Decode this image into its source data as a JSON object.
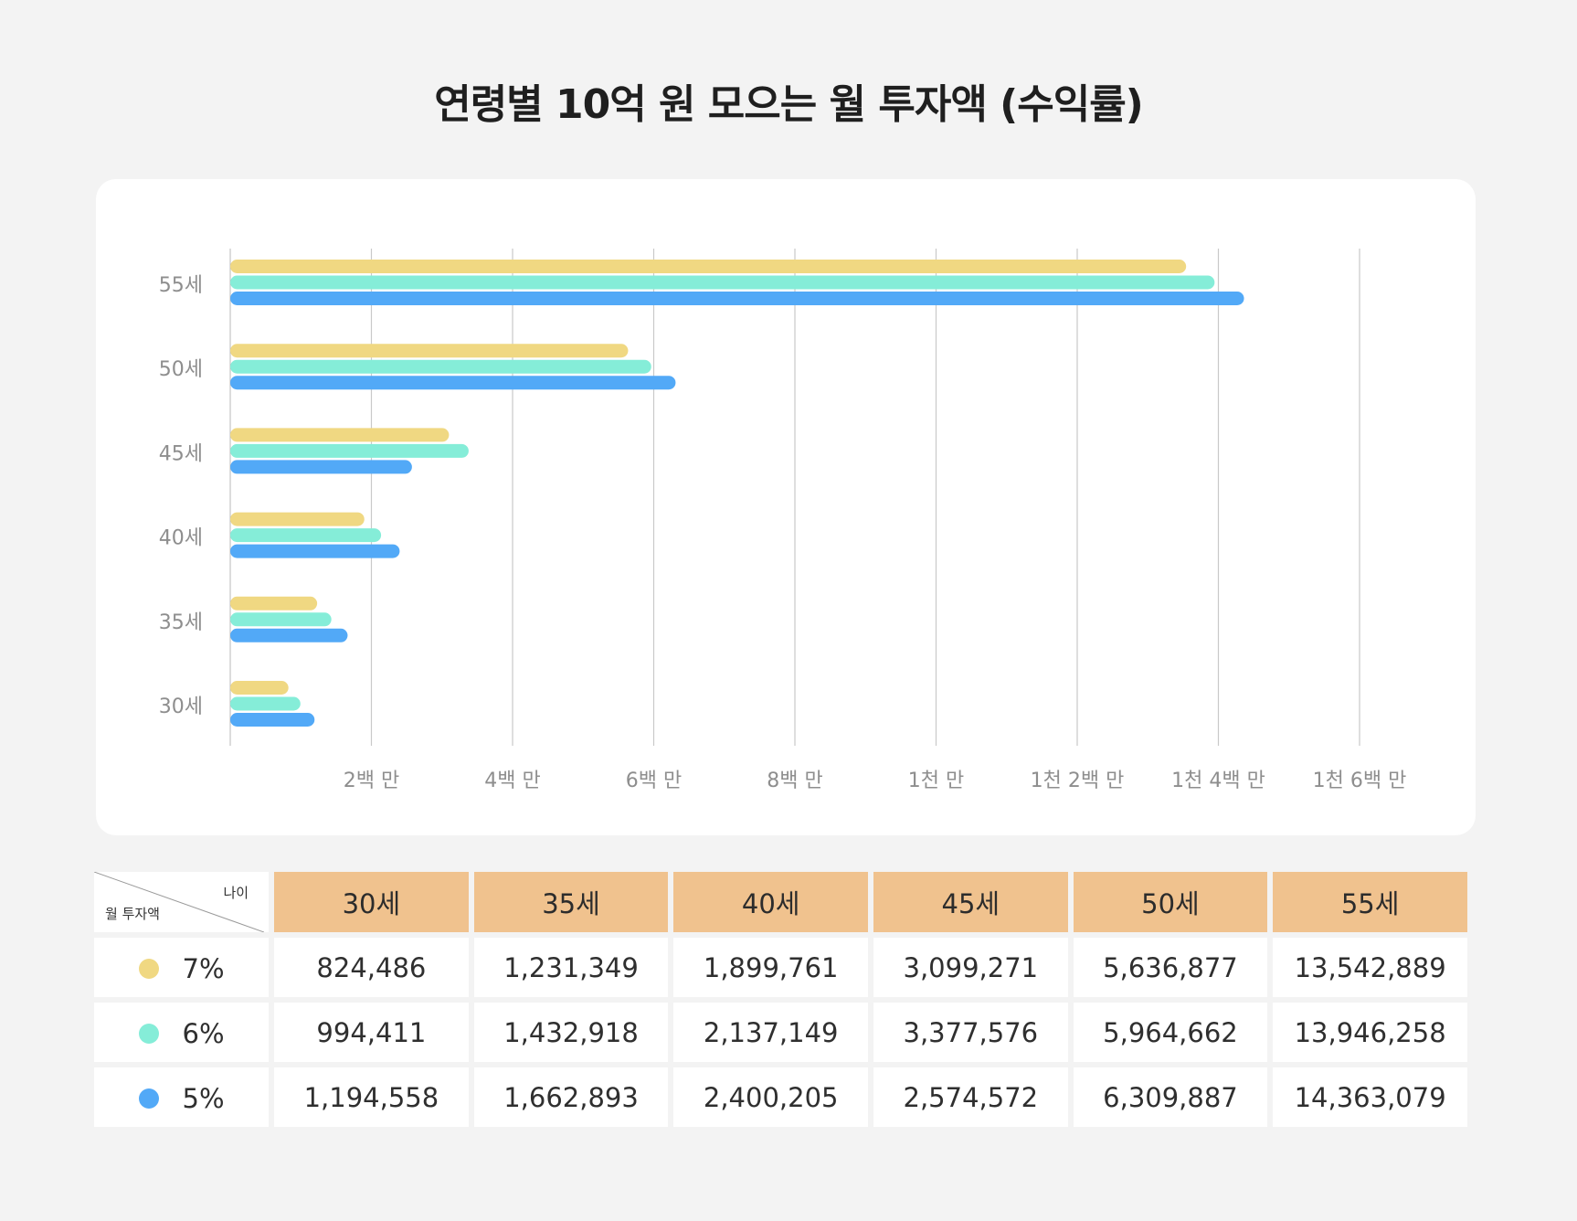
{
  "title": "연령별 10억 원 모으는 월 투자액 (수익률)",
  "colors": {
    "r7": "#f0d882",
    "r6": "#85edd8",
    "r5": "#52a9f7"
  },
  "chart_data": {
    "type": "bar",
    "orientation": "horizontal",
    "categories": [
      "55세",
      "50세",
      "45세",
      "40세",
      "35세",
      "30세"
    ],
    "x_ticks": [
      {
        "value": 2000000,
        "label": "2백 만"
      },
      {
        "value": 4000000,
        "label": "4백 만"
      },
      {
        "value": 6000000,
        "label": "6백 만"
      },
      {
        "value": 8000000,
        "label": "8백 만"
      },
      {
        "value": 10000000,
        "label": "1천 만"
      },
      {
        "value": 12000000,
        "label": "1천 2백 만"
      },
      {
        "value": 14000000,
        "label": "1천 4백 만"
      },
      {
        "value": 16000000,
        "label": "1천 6백 만"
      }
    ],
    "xlim": [
      0,
      16000000
    ],
    "grid": true,
    "series": [
      {
        "name": "7%",
        "color": "#f0d882",
        "values": [
          13542889,
          5636877,
          3099271,
          1899761,
          1231349,
          824486
        ]
      },
      {
        "name": "6%",
        "color": "#85edd8",
        "values": [
          13946258,
          5964662,
          3377576,
          2137149,
          1432918,
          994411
        ]
      },
      {
        "name": "5%",
        "color": "#52a9f7",
        "values": [
          14363079,
          6309887,
          2574572,
          2400205,
          1662893,
          1194558
        ]
      }
    ]
  },
  "table": {
    "corner_top": "나이",
    "corner_bottom": "월 투자액",
    "headers": [
      "30세",
      "35세",
      "40세",
      "45세",
      "50세",
      "55세"
    ],
    "rows": [
      {
        "rate": "7%",
        "color": "#f0d882",
        "values": [
          "824,486",
          "1,231,349",
          "1,899,761",
          "3,099,271",
          "5,636,877",
          "13,542,889"
        ]
      },
      {
        "rate": "6%",
        "color": "#85edd8",
        "values": [
          "994,411",
          "1,432,918",
          "2,137,149",
          "3,377,576",
          "5,964,662",
          "13,946,258"
        ]
      },
      {
        "rate": "5%",
        "color": "#52a9f7",
        "values": [
          "1,194,558",
          "1,662,893",
          "2,400,205",
          "2,574,572",
          "6,309,887",
          "14,363,079"
        ]
      }
    ]
  }
}
